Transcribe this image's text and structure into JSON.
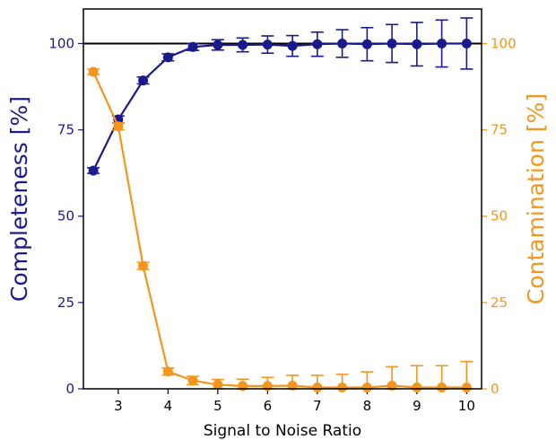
{
  "chart_data": {
    "type": "line",
    "xlabel": "Signal to Noise Ratio",
    "ylabel_left": "Completeness [%]",
    "ylabel_right": "Contamination [%]",
    "xlim": [
      2.3,
      10.3
    ],
    "ylim_left": [
      0,
      110
    ],
    "ylim_right": [
      0,
      110
    ],
    "x_ticks": [
      3,
      4,
      5,
      6,
      7,
      8,
      9,
      10
    ],
    "y_ticks_left": [
      0,
      25,
      50,
      75,
      100
    ],
    "y_ticks_right": [
      0,
      25,
      50,
      75,
      100
    ],
    "reference_line": {
      "y": 100,
      "color": "#000000"
    },
    "grid": false,
    "legend": "none",
    "x": [
      2.5,
      3.0,
      3.5,
      4.0,
      4.5,
      5.0,
      5.5,
      6.0,
      6.5,
      7.0,
      7.5,
      8.0,
      8.5,
      9.0,
      9.5,
      10.0
    ],
    "series": [
      {
        "axis": "left",
        "color": "#1a1a8c",
        "values": [
          63.2,
          78.0,
          89.3,
          96.0,
          99.0,
          99.6,
          99.6,
          99.7,
          99.3,
          99.8,
          100.0,
          99.8,
          100.0,
          99.8,
          100.0,
          100.0
        ],
        "errors": [
          0.8,
          1.0,
          1.0,
          1.0,
          1.0,
          1.5,
          2.0,
          2.5,
          3.0,
          3.5,
          4.0,
          4.8,
          5.5,
          6.3,
          6.8,
          7.4
        ]
      },
      {
        "axis": "right",
        "color": "#f5951e",
        "values": [
          91.8,
          76.0,
          35.6,
          5.0,
          2.4,
          1.2,
          0.8,
          0.8,
          0.9,
          0.4,
          0.4,
          0.4,
          0.9,
          0.4,
          0.4,
          0.4
        ],
        "errors": [
          0.8,
          1.0,
          1.0,
          1.0,
          1.2,
          1.5,
          2.0,
          2.5,
          3.0,
          3.5,
          3.8,
          4.5,
          5.5,
          6.3,
          6.3,
          7.5
        ]
      }
    ]
  }
}
